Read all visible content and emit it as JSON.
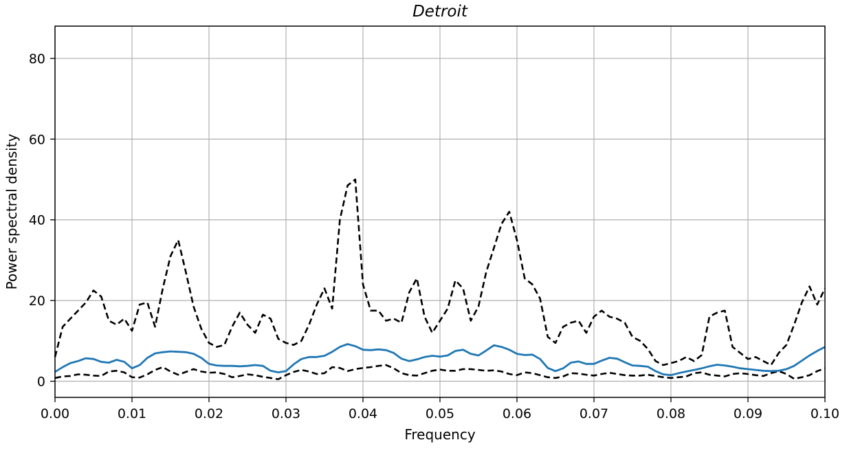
{
  "chart_data": {
    "type": "line",
    "title": "Detroit",
    "xlabel": "Frequency",
    "ylabel": "Power spectral density",
    "xlim": [
      0.0,
      0.1
    ],
    "ylim": [
      -4,
      88
    ],
    "grid": true,
    "xticks": [
      0.0,
      0.01,
      0.02,
      0.03,
      0.04,
      0.05,
      0.06,
      0.07,
      0.08,
      0.09,
      0.1
    ],
    "xtick_labels": [
      "0.00",
      "0.01",
      "0.02",
      "0.03",
      "0.04",
      "0.05",
      "0.06",
      "0.07",
      "0.08",
      "0.09",
      "0.10"
    ],
    "yticks": [
      0,
      20,
      40,
      60,
      80
    ],
    "ytick_labels": [
      "0",
      "20",
      "40",
      "60",
      "80"
    ],
    "colors": {
      "main": "#1f77b4",
      "bounds": "#000000"
    },
    "series": [
      {
        "style": "solid",
        "color": "#1f77b4",
        "x": [
          0.0,
          0.001,
          0.002,
          0.003,
          0.004,
          0.005,
          0.006,
          0.007,
          0.008,
          0.009,
          0.01,
          0.011,
          0.012,
          0.013,
          0.014,
          0.015,
          0.016,
          0.017,
          0.018,
          0.019,
          0.02,
          0.021,
          0.022,
          0.023,
          0.024,
          0.025,
          0.026,
          0.027,
          0.028,
          0.029,
          0.03,
          0.031,
          0.032,
          0.033,
          0.034,
          0.035,
          0.036,
          0.037,
          0.038,
          0.039,
          0.04,
          0.041,
          0.042,
          0.043,
          0.044,
          0.045,
          0.046,
          0.047,
          0.048,
          0.049,
          0.05,
          0.051,
          0.052,
          0.053,
          0.054,
          0.055,
          0.056,
          0.057,
          0.058,
          0.059,
          0.06,
          0.061,
          0.062,
          0.063,
          0.064,
          0.065,
          0.066,
          0.067,
          0.068,
          0.069,
          0.07,
          0.071,
          0.072,
          0.073,
          0.074,
          0.075,
          0.076,
          0.077,
          0.078,
          0.079,
          0.08,
          0.081,
          0.082,
          0.083,
          0.084,
          0.085,
          0.086,
          0.087,
          0.088,
          0.089,
          0.09,
          0.091,
          0.092,
          0.093,
          0.094,
          0.095,
          0.096,
          0.097,
          0.098,
          0.099,
          0.1
        ],
        "y": [
          2.3,
          3.5,
          4.5,
          5.0,
          5.7,
          5.5,
          4.8,
          4.6,
          5.3,
          4.8,
          3.2,
          4.0,
          5.8,
          6.9,
          7.2,
          7.4,
          7.3,
          7.2,
          6.8,
          5.8,
          4.3,
          3.9,
          3.8,
          3.8,
          3.7,
          3.8,
          4.0,
          3.8,
          2.6,
          2.2,
          2.5,
          4.2,
          5.5,
          6.0,
          6.0,
          6.3,
          7.3,
          8.5,
          9.2,
          8.7,
          7.8,
          7.7,
          7.9,
          7.7,
          7.0,
          5.6,
          5.0,
          5.4,
          6.0,
          6.3,
          6.1,
          6.4,
          7.5,
          7.8,
          6.8,
          6.4,
          7.6,
          8.9,
          8.5,
          7.8,
          6.8,
          6.5,
          6.6,
          5.5,
          3.3,
          2.5,
          3.2,
          4.6,
          4.9,
          4.3,
          4.3,
          5.1,
          5.8,
          5.6,
          4.7,
          3.9,
          3.8,
          3.6,
          2.5,
          1.7,
          1.5,
          2.0,
          2.4,
          2.8,
          3.2,
          3.7,
          4.1,
          3.9,
          3.6,
          3.2,
          3.0,
          2.8,
          2.6,
          2.5,
          2.6,
          3.0,
          3.8,
          5.1,
          6.4,
          7.5,
          8.5
        ]
      },
      {
        "style": "dashed",
        "color": "#000000",
        "x": [
          0.0,
          0.001,
          0.002,
          0.003,
          0.004,
          0.005,
          0.006,
          0.007,
          0.008,
          0.009,
          0.01,
          0.011,
          0.012,
          0.013,
          0.014,
          0.015,
          0.016,
          0.017,
          0.018,
          0.019,
          0.02,
          0.021,
          0.022,
          0.023,
          0.024,
          0.025,
          0.026,
          0.027,
          0.028,
          0.029,
          0.03,
          0.031,
          0.032,
          0.033,
          0.034,
          0.035,
          0.036,
          0.037,
          0.038,
          0.039,
          0.04,
          0.041,
          0.042,
          0.043,
          0.044,
          0.045,
          0.046,
          0.047,
          0.048,
          0.049,
          0.05,
          0.051,
          0.052,
          0.053,
          0.054,
          0.055,
          0.056,
          0.057,
          0.058,
          0.059,
          0.06,
          0.061,
          0.062,
          0.063,
          0.064,
          0.065,
          0.066,
          0.067,
          0.068,
          0.069,
          0.07,
          0.071,
          0.072,
          0.073,
          0.074,
          0.075,
          0.076,
          0.077,
          0.078,
          0.079,
          0.08,
          0.081,
          0.082,
          0.083,
          0.084,
          0.085,
          0.086,
          0.087,
          0.088,
          0.089,
          0.09,
          0.091,
          0.092,
          0.093,
          0.094,
          0.095,
          0.096,
          0.097,
          0.098,
          0.099,
          0.1
        ],
        "y": [
          6.0,
          13.5,
          15.5,
          17.5,
          19.5,
          22.5,
          21.0,
          15.0,
          14.0,
          15.5,
          12.5,
          19.0,
          19.5,
          13.5,
          23.0,
          31.0,
          35.0,
          27.0,
          18.5,
          13.0,
          9.5,
          8.5,
          9.0,
          13.5,
          17.0,
          14.0,
          12.0,
          16.5,
          15.5,
          10.5,
          9.5,
          9.0,
          10.0,
          14.0,
          19.0,
          23.0,
          18.0,
          40.0,
          48.5,
          50.0,
          24.0,
          17.5,
          17.5,
          15.0,
          15.5,
          14.5,
          22.0,
          25.5,
          16.0,
          12.0,
          15.0,
          18.0,
          25.0,
          23.0,
          15.0,
          18.5,
          27.0,
          33.0,
          39.0,
          42.0,
          35.0,
          25.5,
          24.0,
          20.5,
          11.0,
          9.5,
          13.5,
          14.5,
          15.0,
          12.0,
          16.0,
          17.5,
          16.0,
          15.5,
          14.5,
          11.0,
          10.0,
          8.0,
          5.0,
          4.0,
          4.5,
          5.0,
          6.0,
          5.0,
          6.5,
          16.0,
          17.0,
          17.5,
          8.5,
          7.0,
          5.5,
          6.0,
          5.0,
          4.0,
          7.0,
          9.0,
          14.0,
          19.5,
          23.5,
          19.0,
          23.0
        ]
      },
      {
        "style": "dashed",
        "color": "#000000",
        "x": [
          0.0,
          0.001,
          0.002,
          0.003,
          0.004,
          0.005,
          0.006,
          0.007,
          0.008,
          0.009,
          0.01,
          0.011,
          0.012,
          0.013,
          0.014,
          0.015,
          0.016,
          0.017,
          0.018,
          0.019,
          0.02,
          0.021,
          0.022,
          0.023,
          0.024,
          0.025,
          0.026,
          0.027,
          0.028,
          0.029,
          0.03,
          0.031,
          0.032,
          0.033,
          0.034,
          0.035,
          0.036,
          0.037,
          0.038,
          0.039,
          0.04,
          0.041,
          0.042,
          0.043,
          0.044,
          0.045,
          0.046,
          0.047,
          0.048,
          0.049,
          0.05,
          0.051,
          0.052,
          0.053,
          0.054,
          0.055,
          0.056,
          0.057,
          0.058,
          0.059,
          0.06,
          0.061,
          0.062,
          0.063,
          0.064,
          0.065,
          0.066,
          0.067,
          0.068,
          0.069,
          0.07,
          0.071,
          0.072,
          0.073,
          0.074,
          0.075,
          0.076,
          0.077,
          0.078,
          0.079,
          0.08,
          0.081,
          0.082,
          0.083,
          0.084,
          0.085,
          0.086,
          0.087,
          0.088,
          0.089,
          0.09,
          0.091,
          0.092,
          0.093,
          0.094,
          0.095,
          0.096,
          0.097,
          0.098,
          0.099,
          0.1
        ],
        "y": [
          0.8,
          1.2,
          1.3,
          1.7,
          1.6,
          1.4,
          1.3,
          2.4,
          2.6,
          2.2,
          1.0,
          0.9,
          1.7,
          2.8,
          3.5,
          2.4,
          1.6,
          2.3,
          3.0,
          2.4,
          2.1,
          2.2,
          1.8,
          1.0,
          1.3,
          1.7,
          1.5,
          1.1,
          0.8,
          0.5,
          1.5,
          2.3,
          2.8,
          2.4,
          1.8,
          2.0,
          3.5,
          3.3,
          2.5,
          3.0,
          3.3,
          3.5,
          3.8,
          4.0,
          3.2,
          2.0,
          1.5,
          1.4,
          2.0,
          2.6,
          2.9,
          2.6,
          2.6,
          3.0,
          3.0,
          2.8,
          2.6,
          2.7,
          2.4,
          1.8,
          1.5,
          2.2,
          2.0,
          1.5,
          1.0,
          0.8,
          1.2,
          2.0,
          1.9,
          1.6,
          1.4,
          1.8,
          2.1,
          1.8,
          1.5,
          1.4,
          1.4,
          1.6,
          1.3,
          1.0,
          0.8,
          1.0,
          1.2,
          2.0,
          2.2,
          1.6,
          1.4,
          1.2,
          1.8,
          2.0,
          1.8,
          1.5,
          1.3,
          2.0,
          2.5,
          1.8,
          0.6,
          1.0,
          1.5,
          2.5,
          3.2
        ]
      }
    ]
  }
}
